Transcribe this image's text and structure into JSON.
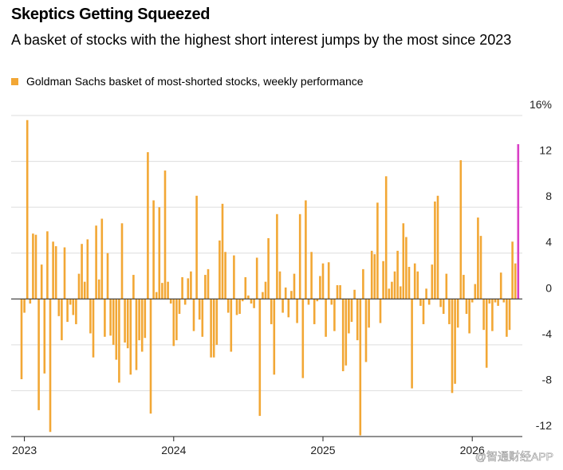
{
  "chart_data": {
    "type": "bar",
    "title": "Skeptics Getting Squeezed",
    "subtitle": "A basket of stocks with the highest short interest jumps by the most since 2023",
    "watermark": "@智通财经APP",
    "series": [
      {
        "name": "Goldman Sachs basket of most-shorted stocks, weekly performance",
        "color": "#f2a735",
        "highlight": {
          "index": 173,
          "color": "#d93fc6"
        },
        "values": [
          -7.0,
          -1.2,
          15.6,
          -0.4,
          5.7,
          5.6,
          -9.7,
          3.0,
          -6.5,
          5.9,
          -11.6,
          5.0,
          4.6,
          -1.5,
          -3.6,
          4.5,
          -2.0,
          -0.5,
          -1.4,
          -2.2,
          2.2,
          4.8,
          1.5,
          5.2,
          -3.0,
          -5.1,
          6.4,
          1.7,
          7.0,
          -3.3,
          4.0,
          -3.2,
          -4.0,
          -5.3,
          -7.3,
          6.6,
          -3.8,
          -4.3,
          -6.6,
          2.1,
          -6.2,
          -3.6,
          -4.6,
          -3.4,
          12.8,
          -10.0,
          8.6,
          0.6,
          8.0,
          1.4,
          11.2,
          1.5,
          -0.4,
          -4.1,
          -3.6,
          -1.3,
          1.9,
          -0.5,
          1.8,
          2.4,
          -2.8,
          9.0,
          -1.8,
          -3.3,
          2.1,
          2.6,
          -5.1,
          -5.1,
          -4.0,
          5.1,
          8.3,
          4.1,
          -1.2,
          -4.6,
          3.8,
          -1.4,
          -1.3,
          -0.2,
          1.9,
          0.3,
          -0.4,
          -0.8,
          3.6,
          -10.2,
          0.6,
          1.5,
          5.3,
          -2.2,
          -6.6,
          7.4,
          2.4,
          -1.2,
          1.0,
          -1.6,
          0.7,
          2.2,
          -2.1,
          7.4,
          -6.9,
          8.6,
          -0.5,
          4.1,
          -2.2,
          -0.2,
          2.0,
          3.1,
          -3.3,
          3.2,
          -0.5,
          -2.8,
          1.2,
          1.2,
          -6.3,
          -5.8,
          -3.0,
          -2.0,
          0.8,
          -3.6,
          -11.9,
          2.6,
          -5.5,
          -2.5,
          4.2,
          3.9,
          8.4,
          -2.1,
          3.3,
          10.7,
          0.9,
          1.5,
          2.4,
          4.2,
          1.1,
          6.6,
          5.4,
          2.8,
          -7.8,
          3.1,
          2.4,
          -0.6,
          -2.2,
          0.9,
          -0.5,
          3.0,
          8.5,
          9.0,
          -0.7,
          -1.3,
          2.2,
          -2.2,
          -8.2,
          -7.4,
          -2.5,
          12.1,
          2.1,
          -1.3,
          -3.0,
          -0.3,
          1.3,
          7.1,
          5.5,
          -2.7,
          -6.0,
          -0.4,
          -2.8,
          -0.3,
          -0.6,
          2.3,
          -0.3,
          -3.3,
          -2.7,
          5.0,
          3.1,
          13.5
        ]
      }
    ],
    "categories": [
      null,
      "2023",
      null,
      null,
      null,
      null,
      null,
      null,
      null,
      null,
      null,
      null,
      null,
      null,
      null,
      null,
      null,
      null,
      null,
      null,
      null,
      null,
      null,
      null,
      null,
      null,
      null,
      null,
      null,
      null,
      null,
      null,
      null,
      null,
      null,
      null,
      null,
      null,
      null,
      null,
      null,
      null,
      null,
      null,
      null,
      null,
      null,
      null,
      null,
      null,
      null,
      null,
      null,
      "2024",
      null,
      null,
      null,
      null,
      null,
      null,
      null,
      null,
      null,
      null,
      null,
      null,
      null,
      null,
      null,
      null,
      null,
      null,
      null,
      null,
      null,
      null,
      null,
      null,
      null,
      null,
      null,
      null,
      null,
      null,
      null,
      null,
      null,
      null,
      null,
      null,
      null,
      null,
      null,
      null,
      null,
      null,
      null,
      null,
      null,
      null,
      null,
      null,
      null,
      null,
      null,
      "2025",
      null,
      null,
      null,
      null,
      null,
      null,
      null,
      null,
      null,
      null,
      null,
      null,
      null,
      null,
      null,
      null,
      null,
      null,
      null,
      null,
      null,
      null,
      null,
      null,
      null,
      null,
      null,
      null,
      null,
      null,
      null,
      null,
      null,
      null,
      null,
      null,
      null,
      null,
      null,
      null,
      null,
      null,
      null,
      null,
      null,
      null,
      null,
      null,
      null,
      null,
      null,
      "2026",
      null,
      null,
      null,
      null,
      null,
      null,
      null,
      null,
      null,
      null,
      null,
      null,
      null,
      null,
      null,
      null
    ],
    "ylim": [
      -12,
      16
    ],
    "yticks": [
      {
        "value": 16,
        "label": "16%"
      },
      12,
      8,
      4,
      0,
      -4,
      -8,
      -12
    ],
    "grid": true
  }
}
